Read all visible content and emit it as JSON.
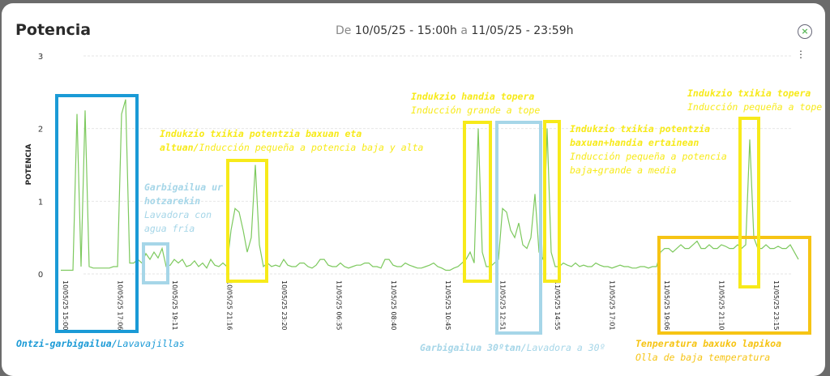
{
  "header": {
    "title": "Potencia",
    "range_from_label": "De",
    "range_from": "10/05/25 - 15:00h",
    "range_to_label": "a",
    "range_to": "11/05/25 - 23:59h",
    "close_icon": "close-circle-icon",
    "menu_icon": "kebab-menu-icon"
  },
  "colors": {
    "line": "#7dc95e",
    "grid": "#e6e6e6",
    "blue": "#1a9ad6",
    "light_blue": "#a6d6e8",
    "yellow": "#f7ea1a",
    "orange": "#f6c414"
  },
  "chart_data": {
    "type": "line",
    "ylabel": "POTENCIA",
    "ylim": [
      0,
      3
    ],
    "yticks": [
      "0",
      "1",
      "2",
      "3"
    ],
    "grid": true,
    "xticks": [
      "10/05/25 15:00",
      "10/05/25 17:06",
      "10/05/25 19:11",
      "10/05/25 21:16",
      "10/05/25 23:20",
      "11/05/25 06:35",
      "11/05/25 08:40",
      "11/05/25 10:45",
      "11/05/25 12:51",
      "11/05/25 14:55",
      "11/05/25 17:01",
      "11/05/25 19:06",
      "11/05/25 21:10",
      "11/05/25 23:15"
    ],
    "values": [
      0.05,
      0.05,
      0.05,
      0.05,
      2.2,
      0.1,
      2.25,
      0.1,
      0.08,
      0.08,
      0.08,
      0.08,
      0.08,
      0.1,
      0.1,
      2.2,
      2.4,
      0.15,
      0.15,
      0.2,
      0.15,
      0.28,
      0.2,
      0.3,
      0.22,
      0.35,
      0.1,
      0.12,
      0.2,
      0.15,
      0.2,
      0.1,
      0.12,
      0.18,
      0.1,
      0.15,
      0.08,
      0.2,
      0.12,
      0.1,
      0.15,
      0.1,
      0.6,
      0.9,
      0.85,
      0.6,
      0.3,
      0.5,
      1.5,
      0.4,
      0.1,
      0.15,
      0.1,
      0.12,
      0.1,
      0.2,
      0.12,
      0.1,
      0.1,
      0.15,
      0.15,
      0.1,
      0.08,
      0.12,
      0.2,
      0.2,
      0.12,
      0.1,
      0.1,
      0.15,
      0.1,
      0.08,
      0.1,
      0.12,
      0.12,
      0.15,
      0.15,
      0.1,
      0.1,
      0.08,
      0.2,
      0.2,
      0.12,
      0.1,
      0.1,
      0.15,
      0.12,
      0.1,
      0.08,
      0.08,
      0.1,
      0.12,
      0.15,
      0.1,
      0.08,
      0.05,
      0.05,
      0.08,
      0.1,
      0.15,
      0.2,
      0.3,
      0.15,
      2.0,
      0.3,
      0.1,
      0.1,
      0.15,
      0.2,
      0.9,
      0.85,
      0.6,
      0.5,
      0.7,
      0.4,
      0.35,
      0.5,
      1.1,
      0.3,
      0.2,
      2.0,
      0.3,
      0.1,
      0.1,
      0.15,
      0.12,
      0.1,
      0.15,
      0.1,
      0.12,
      0.1,
      0.1,
      0.15,
      0.12,
      0.1,
      0.1,
      0.08,
      0.1,
      0.12,
      0.1,
      0.1,
      0.08,
      0.08,
      0.1,
      0.1,
      0.08,
      0.1,
      0.1,
      0.3,
      0.35,
      0.35,
      0.3,
      0.35,
      0.4,
      0.35,
      0.35,
      0.4,
      0.45,
      0.35,
      0.35,
      0.4,
      0.35,
      0.35,
      0.4,
      0.38,
      0.35,
      0.35,
      0.4,
      0.35,
      0.4,
      1.85,
      0.5,
      0.35,
      0.35,
      0.4,
      0.35,
      0.35,
      0.38,
      0.35,
      0.35,
      0.4,
      0.3,
      0.2
    ]
  },
  "annotations": {
    "dishwasher": {
      "eu": "Ontzi-garbigailua/",
      "es": "Lavavajillas"
    },
    "cold_wash": {
      "eu1": "Garbigailua ur",
      "eu2": "hotzarekin",
      "es1": "Lavadora con",
      "es2": "agua fría"
    },
    "small_low_high": {
      "eu1": "Indukzio txikia potentzia baxuan eta",
      "eu2": "altuan/",
      "es": "Inducción pequeña a potencia baja y alta"
    },
    "big_max": {
      "eu": "Indukzio handia topera",
      "es": "Inducción grande a tope"
    },
    "small_low_big_mid": {
      "eu1": "Indukzio txikia potentzia",
      "eu2": "baxuan+handia ertainean",
      "es1": "Inducción pequeña a potencia",
      "es2": "baja+grande a media"
    },
    "small_max": {
      "eu": "Indukzio txikia topera",
      "es": "Inducción pequeña a tope"
    },
    "wash30": {
      "eu": "Garbigailua 30ºtan/",
      "es": "Lavadora a 30º"
    },
    "slow_cooker": {
      "eu": "Tenperatura baxuko lapikoa",
      "es": "Olla de baja temperatura"
    }
  }
}
